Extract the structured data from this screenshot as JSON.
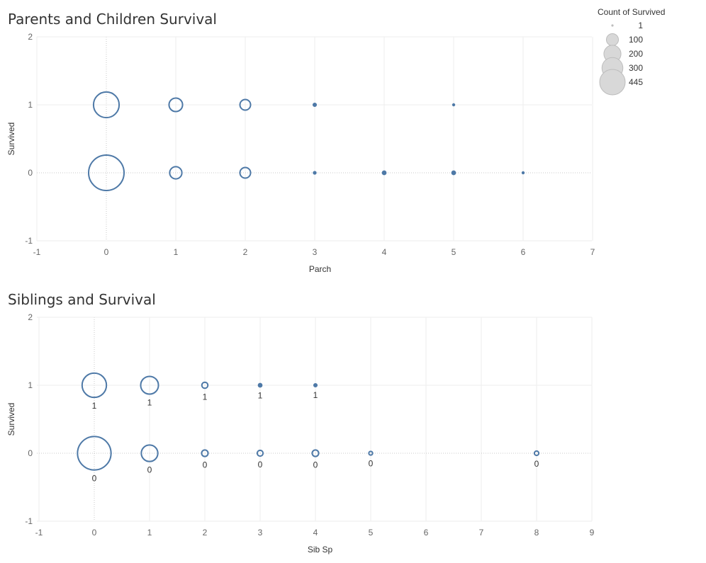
{
  "chart_data": [
    {
      "type": "scatter",
      "title": "Parents and Children Survival",
      "xlabel": "Parch",
      "ylabel": "Survived",
      "xlim": [
        -1,
        7
      ],
      "ylim": [
        -1,
        2
      ],
      "xticks": [
        -1,
        0,
        1,
        2,
        3,
        4,
        5,
        6,
        7
      ],
      "yticks": [
        2,
        1,
        0,
        -1
      ],
      "size_measure": "Count of Survived",
      "points": [
        {
          "x": 0,
          "y": 1,
          "count": 233
        },
        {
          "x": 1,
          "y": 1,
          "count": 65
        },
        {
          "x": 2,
          "y": 1,
          "count": 40
        },
        {
          "x": 3,
          "y": 1,
          "count": 3
        },
        {
          "x": 5,
          "y": 1,
          "count": 1
        },
        {
          "x": 0,
          "y": 0,
          "count": 445
        },
        {
          "x": 1,
          "y": 0,
          "count": 53
        },
        {
          "x": 2,
          "y": 0,
          "count": 40
        },
        {
          "x": 3,
          "y": 0,
          "count": 2
        },
        {
          "x": 4,
          "y": 0,
          "count": 4
        },
        {
          "x": 5,
          "y": 0,
          "count": 4
        },
        {
          "x": 6,
          "y": 0,
          "count": 1
        }
      ],
      "show_labels": false
    },
    {
      "type": "scatter",
      "title": "Siblings and Survival",
      "xlabel": "Sib Sp",
      "ylabel": "Survived",
      "xlim": [
        -1,
        9
      ],
      "ylim": [
        -1,
        2
      ],
      "xticks": [
        -1,
        0,
        1,
        2,
        3,
        4,
        5,
        6,
        7,
        8,
        9
      ],
      "yticks": [
        2,
        1,
        0,
        -1
      ],
      "size_measure": "Count of Survived",
      "points": [
        {
          "x": 0,
          "y": 1,
          "count": 210,
          "label": "1"
        },
        {
          "x": 1,
          "y": 1,
          "count": 112,
          "label": "1"
        },
        {
          "x": 2,
          "y": 1,
          "count": 13,
          "label": "1"
        },
        {
          "x": 3,
          "y": 1,
          "count": 4,
          "label": "1"
        },
        {
          "x": 4,
          "y": 1,
          "count": 3,
          "label": "1"
        },
        {
          "x": 0,
          "y": 0,
          "count": 398,
          "label": "0"
        },
        {
          "x": 1,
          "y": 0,
          "count": 97,
          "label": "0"
        },
        {
          "x": 2,
          "y": 0,
          "count": 15,
          "label": "0"
        },
        {
          "x": 3,
          "y": 0,
          "count": 12,
          "label": "0"
        },
        {
          "x": 4,
          "y": 0,
          "count": 15,
          "label": "0"
        },
        {
          "x": 5,
          "y": 0,
          "count": 5,
          "label": "0"
        },
        {
          "x": 8,
          "y": 0,
          "count": 7,
          "label": "0"
        }
      ],
      "show_labels": true
    }
  ],
  "legend": {
    "title": "Count of Survived",
    "entries": [
      {
        "label": "1",
        "value": 1
      },
      {
        "label": "100",
        "value": 100
      },
      {
        "label": "200",
        "value": 200
      },
      {
        "label": "300",
        "value": 300
      },
      {
        "label": "445",
        "value": 445
      }
    ]
  },
  "colors": {
    "mark": "#4e79a7",
    "legend_fill": "#d8d8d8",
    "legend_stroke": "#bdbdbd",
    "grid": "#eeeeee",
    "zero_line": "#c8c8c8"
  }
}
